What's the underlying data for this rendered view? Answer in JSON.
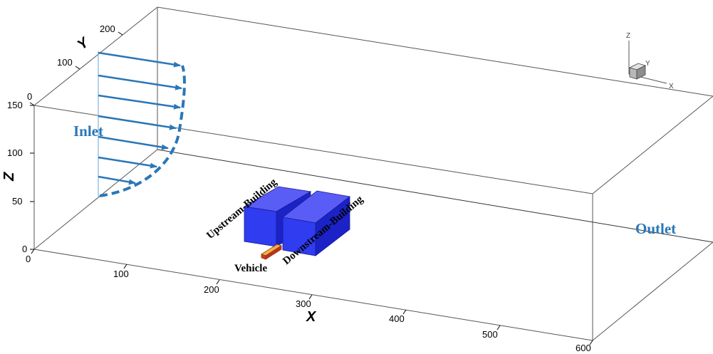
{
  "axes": {
    "x": {
      "title": "X",
      "ticks": [
        "0",
        "100",
        "200",
        "300",
        "400",
        "500",
        "600"
      ]
    },
    "y": {
      "title": "Y",
      "ticks": [
        "0",
        "100",
        "200"
      ]
    },
    "z": {
      "title": "Z",
      "ticks": [
        "0",
        "50",
        "100",
        "150"
      ]
    }
  },
  "labels": {
    "inlet": "Inlet",
    "outlet": "Outlet",
    "upstream": "Upstream-Building",
    "downstream": "Downstream-Building",
    "vehicle": "Vehicle"
  },
  "triad": {
    "z": "Z",
    "y": "Y",
    "x": "X"
  },
  "colors": {
    "building_front": "#2f3cf0",
    "building_top": "#5a5cf6",
    "building_side": "#1a22c8",
    "inlet_arrow": "#2a76b8",
    "vehicle": "#d43a20"
  }
}
